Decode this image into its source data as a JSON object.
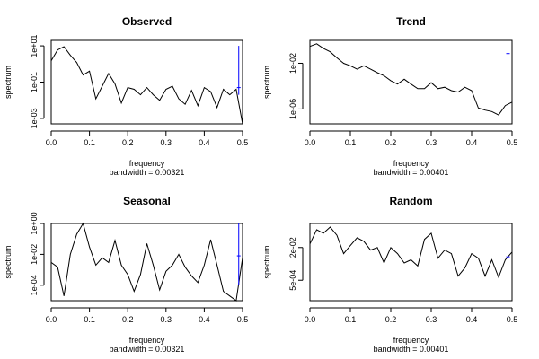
{
  "colors": {
    "line": "#000000",
    "ci_bar": "#0000ff",
    "background": "#ffffff"
  },
  "chart_data": [
    {
      "type": "line",
      "title": "Observed",
      "xlabel": "frequency",
      "ylabel": "spectrum",
      "subtitle": "bandwidth = 0.00321",
      "log_y": true,
      "xlim": [
        0,
        0.5
      ],
      "ylim": [
        0.0005,
        20
      ],
      "x_ticks": [
        0.0,
        0.1,
        0.2,
        0.3,
        0.4,
        0.5
      ],
      "x_tick_labels": [
        "0.0",
        "0.1",
        "0.2",
        "0.3",
        "0.4",
        "0.5"
      ],
      "y_ticks": [
        0.001,
        0.1,
        10
      ],
      "y_tick_labels": [
        "1e-03",
        "1e-01",
        "1e+01"
      ],
      "x": [
        0.0,
        0.0167,
        0.0333,
        0.05,
        0.0667,
        0.0833,
        0.1,
        0.1167,
        0.1333,
        0.15,
        0.1667,
        0.1833,
        0.2,
        0.2167,
        0.2333,
        0.25,
        0.2667,
        0.2833,
        0.3,
        0.3167,
        0.3333,
        0.35,
        0.3667,
        0.3833,
        0.4,
        0.4167,
        0.4333,
        0.45,
        0.4667,
        0.4833,
        0.5
      ],
      "y": [
        1.5,
        6,
        9,
        3,
        1.2,
        0.25,
        0.4,
        0.012,
        0.06,
        0.3,
        0.08,
        0.007,
        0.05,
        0.04,
        0.02,
        0.05,
        0.02,
        0.01,
        0.04,
        0.06,
        0.012,
        0.006,
        0.035,
        0.005,
        0.05,
        0.03,
        0.004,
        0.04,
        0.02,
        0.04,
        0.0005
      ],
      "ci": {
        "x": 0.49,
        "center": 0.05,
        "low": 0.02,
        "high": 10
      }
    },
    {
      "type": "line",
      "title": "Trend",
      "xlabel": "frequency",
      "ylabel": "spectrum",
      "subtitle": "bandwidth = 0.00401",
      "log_y": true,
      "xlim": [
        0,
        0.5
      ],
      "ylim": [
        5e-08,
        1
      ],
      "x_ticks": [
        0.0,
        0.1,
        0.2,
        0.3,
        0.4,
        0.5
      ],
      "x_tick_labels": [
        "0.0",
        "0.1",
        "0.2",
        "0.3",
        "0.4",
        "0.5"
      ],
      "y_ticks": [
        1e-06,
        0.01
      ],
      "y_tick_labels": [
        "1e-06",
        "1e-02"
      ],
      "x": [
        0.0,
        0.0167,
        0.0333,
        0.05,
        0.0667,
        0.0833,
        0.1,
        0.1167,
        0.1333,
        0.15,
        0.1667,
        0.1833,
        0.2,
        0.2167,
        0.2333,
        0.25,
        0.2667,
        0.2833,
        0.3,
        0.3167,
        0.3333,
        0.35,
        0.3667,
        0.3833,
        0.4,
        0.4167,
        0.4333,
        0.45,
        0.4667,
        0.4833,
        0.5
      ],
      "y": [
        0.3,
        0.5,
        0.2,
        0.1,
        0.03,
        0.01,
        0.006,
        0.003,
        0.006,
        0.003,
        0.0015,
        0.0008,
        0.0003,
        0.00015,
        0.0004,
        0.00015,
        6e-05,
        6e-05,
        0.0002,
        6e-05,
        8e-05,
        4e-05,
        3e-05,
        8e-05,
        4e-05,
        1.2e-06,
        8e-07,
        6e-07,
        3e-07,
        2e-06,
        4e-06
      ],
      "ci": {
        "x": 0.49,
        "center": 0.07,
        "low": 0.02,
        "high": 0.4
      }
    },
    {
      "type": "line",
      "title": "Seasonal",
      "xlabel": "frequency",
      "ylabel": "spectrum",
      "subtitle": "bandwidth = 0.00321",
      "log_y": true,
      "xlim": [
        0,
        0.5
      ],
      "ylim": [
        1e-05,
        1
      ],
      "x_ticks": [
        0.0,
        0.1,
        0.2,
        0.3,
        0.4,
        0.5
      ],
      "x_tick_labels": [
        "0.0",
        "0.1",
        "0.2",
        "0.3",
        "0.4",
        "0.5"
      ],
      "y_ticks": [
        0.0001,
        0.01,
        1
      ],
      "y_tick_labels": [
        "1e-04",
        "1e-02",
        "1e+00"
      ],
      "x": [
        0.0,
        0.0167,
        0.0333,
        0.05,
        0.0667,
        0.0833,
        0.1,
        0.1167,
        0.1333,
        0.15,
        0.1667,
        0.1833,
        0.2,
        0.2167,
        0.2333,
        0.25,
        0.2667,
        0.2833,
        0.3,
        0.3167,
        0.3333,
        0.35,
        0.3667,
        0.3833,
        0.4,
        0.4167,
        0.4333,
        0.45,
        0.4667,
        0.4833,
        0.5
      ],
      "y": [
        0.003,
        0.0015,
        2e-05,
        0.01,
        0.2,
        1,
        0.03,
        0.002,
        0.006,
        0.003,
        0.08,
        0.002,
        0.0005,
        4e-05,
        0.0005,
        0.05,
        0.002,
        5e-05,
        0.0008,
        0.002,
        0.01,
        0.0015,
        0.0004,
        0.00015,
        0.002,
        0.09,
        0.002,
        4e-05,
        2e-05,
        1e-05,
        0.006
      ],
      "ci": {
        "x": 0.49,
        "center": 0.008,
        "low": 0.0001,
        "high": 1
      }
    },
    {
      "type": "line",
      "title": "Random",
      "xlabel": "frequency",
      "ylabel": "spectrum",
      "subtitle": "bandwidth = 0.00401",
      "log_y": true,
      "xlim": [
        0,
        0.5
      ],
      "ylim": [
        5e-05,
        0.3
      ],
      "x_ticks": [
        0.0,
        0.1,
        0.2,
        0.3,
        0.4,
        0.5
      ],
      "x_tick_labels": [
        "0.0",
        "0.1",
        "0.2",
        "0.3",
        "0.4",
        "0.5"
      ],
      "y_ticks": [
        0.0005,
        0.02
      ],
      "y_tick_labels": [
        "5e-04",
        "2e-02"
      ],
      "x": [
        0.0,
        0.0167,
        0.0333,
        0.05,
        0.0667,
        0.0833,
        0.1,
        0.1167,
        0.1333,
        0.15,
        0.1667,
        0.1833,
        0.2,
        0.2167,
        0.2333,
        0.25,
        0.2667,
        0.2833,
        0.3,
        0.3167,
        0.3333,
        0.35,
        0.3667,
        0.3833,
        0.4,
        0.4167,
        0.4333,
        0.45,
        0.4667,
        0.4833,
        0.5
      ],
      "y": [
        0.03,
        0.15,
        0.1,
        0.2,
        0.08,
        0.01,
        0.025,
        0.06,
        0.04,
        0.015,
        0.02,
        0.0035,
        0.02,
        0.01,
        0.0035,
        0.005,
        0.0025,
        0.05,
        0.1,
        0.006,
        0.015,
        0.01,
        0.0008,
        0.002,
        0.01,
        0.006,
        0.0008,
        0.005,
        0.0007,
        0.005,
        0.012
      ],
      "ci": {
        "x": 0.49,
        "center": 0.007,
        "low": 0.0003,
        "high": 0.15
      }
    }
  ]
}
